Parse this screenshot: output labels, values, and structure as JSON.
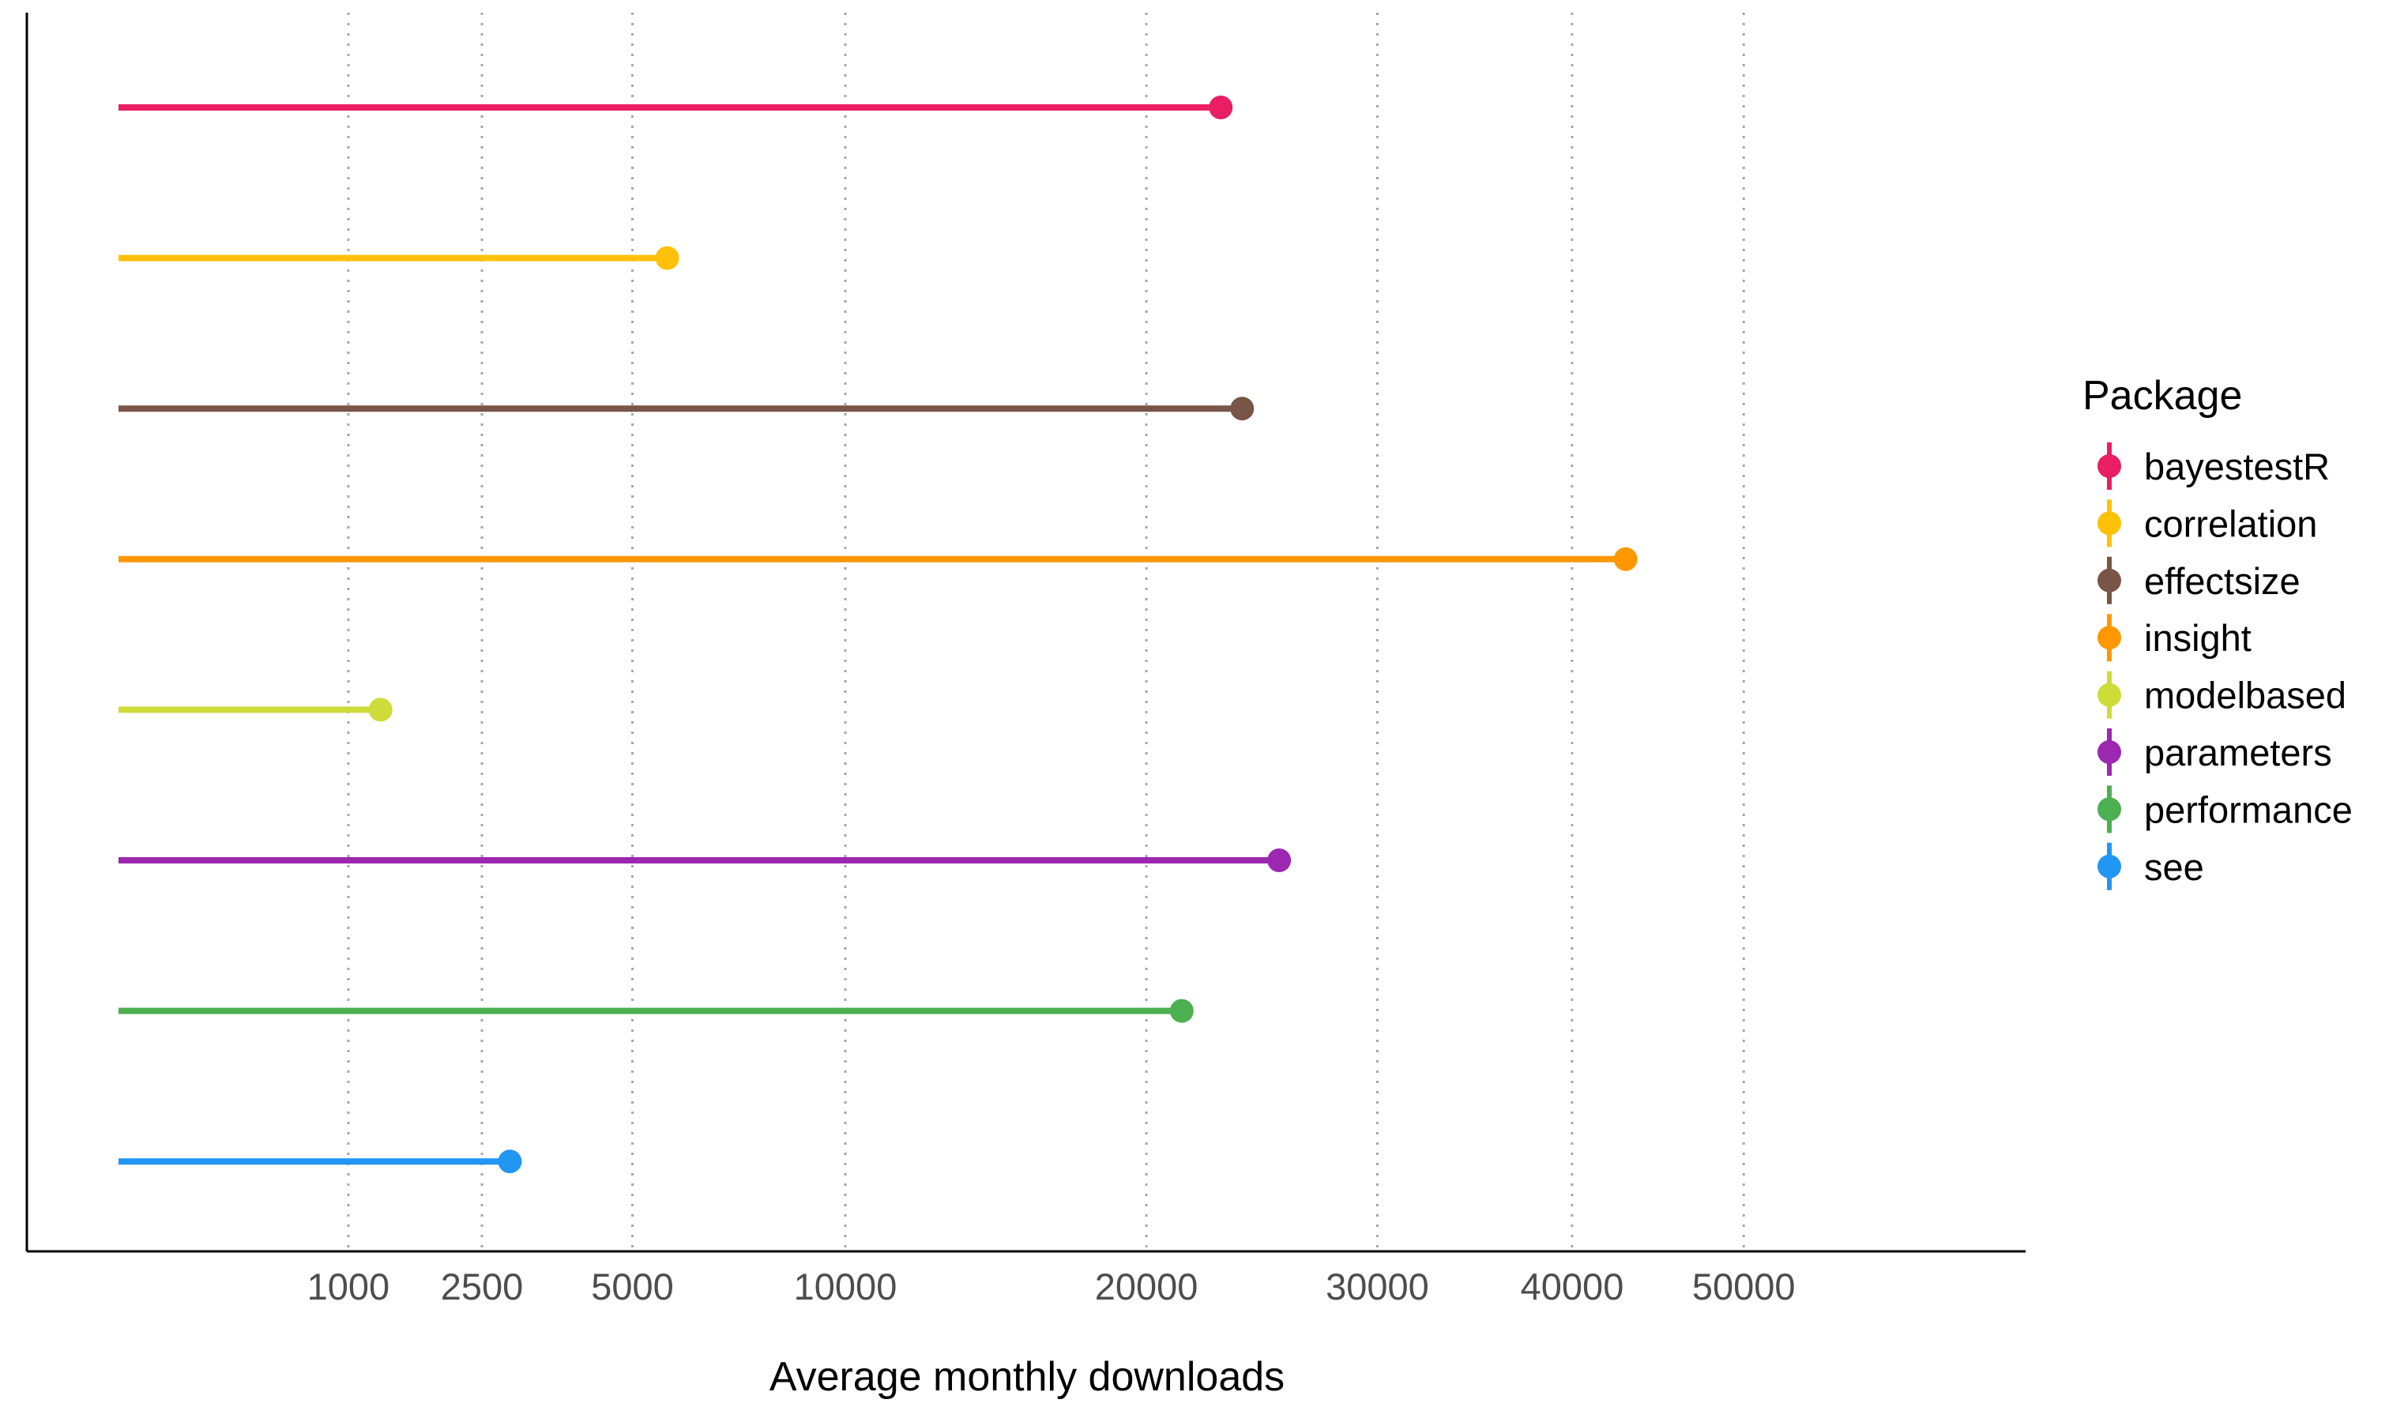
{
  "chart_data": {
    "type": "lollipop",
    "xlabel": "Average monthly downloads",
    "ylabel": "",
    "x_scale": "sqrt",
    "xlim": [
      0,
      56000
    ],
    "x_ticks": [
      1000,
      2500,
      5000,
      10000,
      20000,
      30000,
      40000,
      50000
    ],
    "x_tick_labels": [
      "1000",
      "2500",
      "5000",
      "10000",
      "20000",
      "30000",
      "40000",
      "50000"
    ],
    "grid": "vertical dotted major gridlines",
    "legend": {
      "title": "Package",
      "placement": "right"
    },
    "categories": [
      "bayestestR",
      "correlation",
      "effectsize",
      "insight",
      "modelbased",
      "parameters",
      "performance",
      "see"
    ],
    "values": [
      23000,
      5700,
      23900,
      43000,
      1300,
      25500,
      21400,
      2900
    ],
    "colors": [
      "#E91E63",
      "#FFC107",
      "#795548",
      "#FF9800",
      "#CDDC39",
      "#9C27B0",
      "#4CAF50",
      "#2196F3"
    ]
  }
}
